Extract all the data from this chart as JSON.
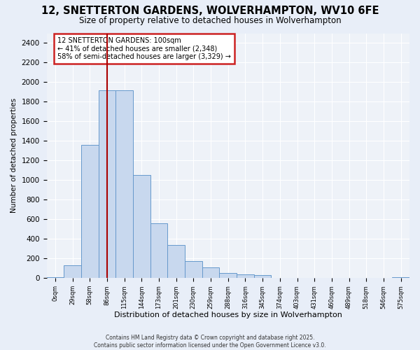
{
  "title": "12, SNETTERTON GARDENS, WOLVERHAMPTON, WV10 6FE",
  "subtitle": "Size of property relative to detached houses in Wolverhampton",
  "xlabel": "Distribution of detached houses by size in Wolverhampton",
  "ylabel": "Number of detached properties",
  "bin_labels": [
    "0sqm",
    "29sqm",
    "58sqm",
    "86sqm",
    "115sqm",
    "144sqm",
    "173sqm",
    "201sqm",
    "230sqm",
    "259sqm",
    "288sqm",
    "316sqm",
    "345sqm",
    "374sqm",
    "403sqm",
    "431sqm",
    "460sqm",
    "489sqm",
    "518sqm",
    "546sqm",
    "575sqm"
  ],
  "bar_heights": [
    10,
    130,
    1360,
    1920,
    1920,
    1055,
    560,
    340,
    170,
    110,
    55,
    35,
    30,
    5,
    5,
    3,
    2,
    1,
    1,
    1,
    10
  ],
  "bar_color": "#c8d8ee",
  "bar_edge_color": "#6699cc",
  "vline_x": 3.0,
  "vline_color": "#aa0000",
  "annotation_text": "12 SNETTERTON GARDENS: 100sqm\n← 41% of detached houses are smaller (2,348)\n58% of semi-detached houses are larger (3,329) →",
  "annotation_box_color": "#ffffff",
  "annotation_box_edge": "#cc2222",
  "ylim": [
    0,
    2500
  ],
  "yticks": [
    0,
    200,
    400,
    600,
    800,
    1000,
    1200,
    1400,
    1600,
    1800,
    2000,
    2200,
    2400
  ],
  "bg_color": "#e8eef8",
  "plot_bg_color": "#eef2f8",
  "grid_color": "#ffffff",
  "footer": "Contains HM Land Registry data © Crown copyright and database right 2025.\nContains public sector information licensed under the Open Government Licence v3.0."
}
